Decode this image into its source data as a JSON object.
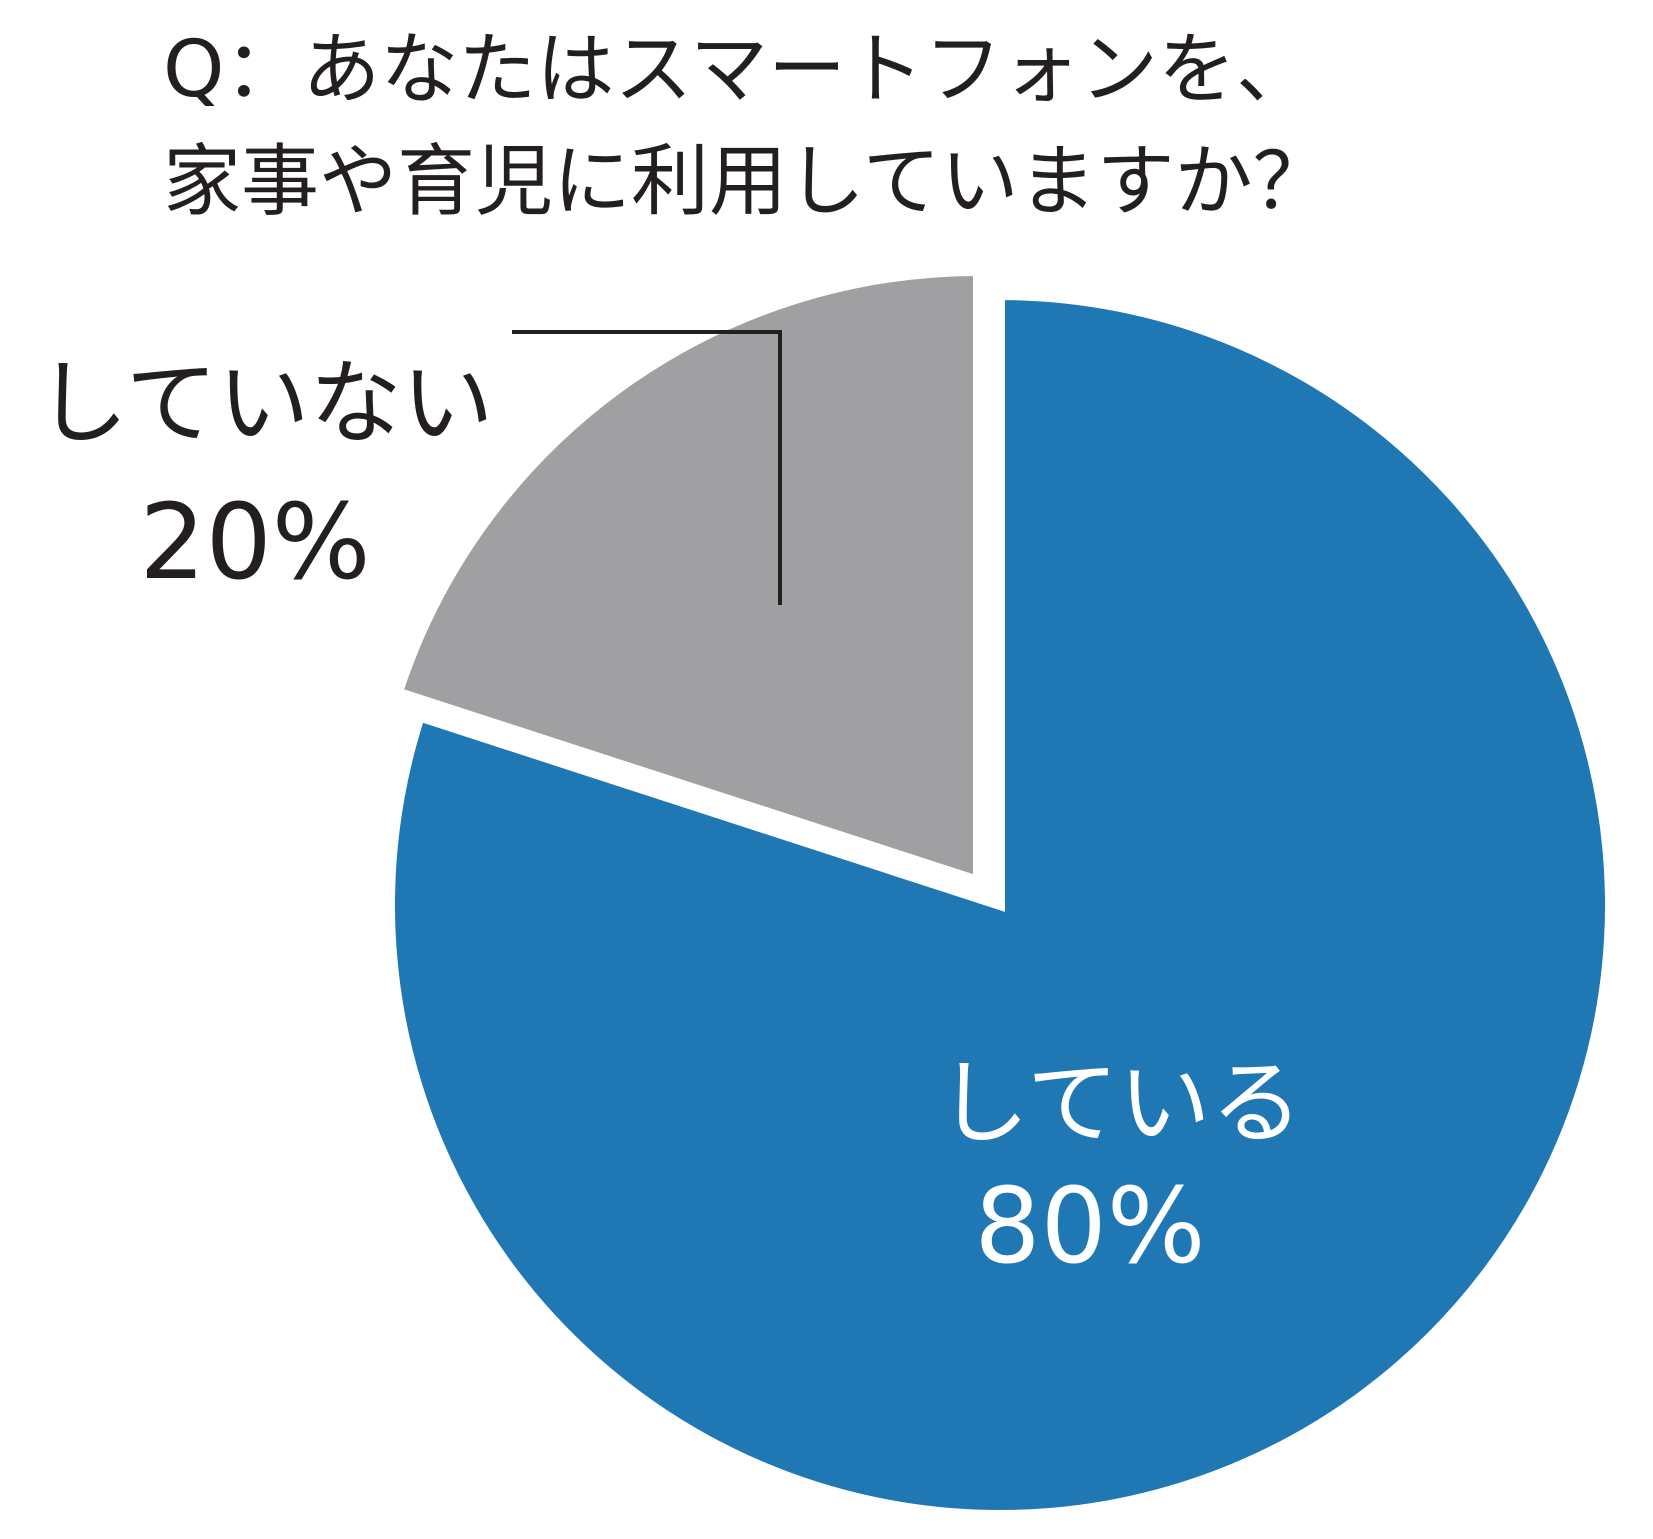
{
  "chart_data": {
    "type": "pie",
    "title_lines": [
      "Q：あなたはスマートフォンを、",
      "家事や育児に利用していますか？"
    ],
    "slices": [
      {
        "label": "している",
        "value": 80,
        "value_label": "80%",
        "color": "#1f77b4",
        "label_color": "#ffffff"
      },
      {
        "label": "していない",
        "value": 20,
        "value_label": "20%",
        "color": "#a0a0a2",
        "label_color": "#231f20"
      }
    ],
    "start_angle_deg": 0,
    "direction": "clockwise",
    "exploded": true,
    "callout_leader": true
  }
}
